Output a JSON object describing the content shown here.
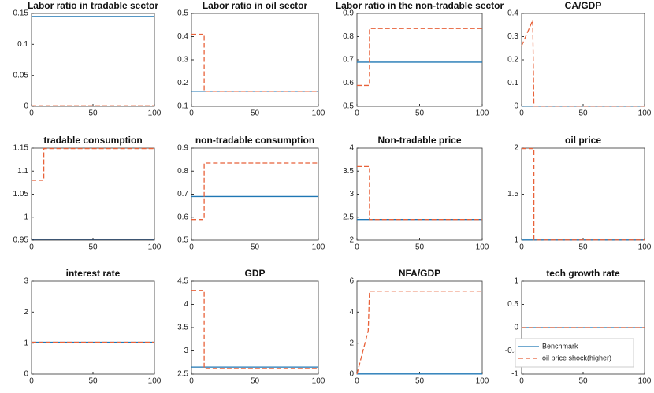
{
  "chart_data": [
    {
      "type": "line",
      "title": "Labor ratio in tradable sector",
      "x": [
        0,
        100
      ],
      "xlim": [
        0,
        100
      ],
      "xticks": [
        0,
        50,
        100
      ],
      "ylim": [
        0,
        0.15
      ],
      "yticks": [
        0,
        0.05,
        0.1,
        0.15
      ],
      "series": [
        {
          "color": "#1f77b4",
          "style": "solid",
          "values": [
            0.145,
            0.145
          ]
        },
        {
          "color": "#e8623a",
          "style": "dashed",
          "values": [
            0.001,
            0.001
          ]
        }
      ]
    },
    {
      "type": "line",
      "title": "Labor ratio in oil sector",
      "x": [
        0,
        10,
        10,
        100
      ],
      "xlim": [
        0,
        100
      ],
      "xticks": [
        0,
        50,
        100
      ],
      "ylim": [
        0.1,
        0.5
      ],
      "yticks": [
        0.1,
        0.2,
        0.3,
        0.4,
        0.5
      ],
      "series": [
        {
          "color": "#1f77b4",
          "style": "solid",
          "values": [
            0.165,
            0.165,
            0.165,
            0.165
          ]
        },
        {
          "color": "#e8623a",
          "style": "dashed",
          "values": [
            0.41,
            0.41,
            0.165,
            0.165
          ]
        }
      ]
    },
    {
      "type": "line",
      "title": "Labor ratio in the non-tradable sector",
      "x": [
        0,
        10,
        10,
        100
      ],
      "xlim": [
        0,
        100
      ],
      "xticks": [
        0,
        50,
        100
      ],
      "ylim": [
        0.5,
        0.9
      ],
      "yticks": [
        0.5,
        0.6,
        0.7,
        0.8,
        0.9
      ],
      "series": [
        {
          "color": "#1f77b4",
          "style": "solid",
          "values": [
            0.69,
            0.69,
            0.69,
            0.69
          ]
        },
        {
          "color": "#e8623a",
          "style": "dashed",
          "values": [
            0.59,
            0.59,
            0.835,
            0.835
          ]
        }
      ]
    },
    {
      "type": "line",
      "title": "CA/GDP",
      "x": [
        0,
        9,
        10,
        100
      ],
      "xlim": [
        0,
        100
      ],
      "xticks": [
        0,
        50,
        100
      ],
      "ylim": [
        0,
        0.4
      ],
      "yticks": [
        0,
        0.1,
        0.2,
        0.3,
        0.4
      ],
      "series": [
        {
          "color": "#1f77b4",
          "style": "solid",
          "values": [
            0.001,
            0.001,
            0.001,
            0.001
          ]
        },
        {
          "color": "#e8623a",
          "style": "dashed",
          "values": [
            0.26,
            0.37,
            0.001,
            0.001
          ]
        }
      ]
    },
    {
      "type": "line",
      "title": "tradable consumption",
      "x": [
        0,
        10,
        10,
        100
      ],
      "xlim": [
        0,
        100
      ],
      "xticks": [
        0,
        50,
        100
      ],
      "ylim": [
        0.95,
        1.15
      ],
      "yticks": [
        0.95,
        1,
        1.05,
        1.1,
        1.15
      ],
      "series": [
        {
          "color": "#1f4f8a",
          "style": "solid",
          "values": [
            0.952,
            0.952,
            0.952,
            0.952
          ]
        },
        {
          "color": "#e8623a",
          "style": "dashed",
          "values": [
            1.08,
            1.08,
            1.149,
            1.149
          ]
        }
      ]
    },
    {
      "type": "line",
      "title": "non-tradable consumption",
      "x": [
        0,
        10,
        10,
        100
      ],
      "xlim": [
        0,
        100
      ],
      "xticks": [
        0,
        50,
        100
      ],
      "ylim": [
        0.5,
        0.9
      ],
      "yticks": [
        0.5,
        0.6,
        0.7,
        0.8,
        0.9
      ],
      "series": [
        {
          "color": "#1f77b4",
          "style": "solid",
          "values": [
            0.69,
            0.69,
            0.69,
            0.69
          ]
        },
        {
          "color": "#e8623a",
          "style": "dashed",
          "values": [
            0.59,
            0.59,
            0.835,
            0.835
          ]
        }
      ]
    },
    {
      "type": "line",
      "title": "Non-tradable price",
      "x": [
        0,
        10,
        10,
        100
      ],
      "xlim": [
        0,
        100
      ],
      "xticks": [
        0,
        50,
        100
      ],
      "ylim": [
        2,
        4
      ],
      "yticks": [
        2,
        2.5,
        3,
        3.5,
        4
      ],
      "series": [
        {
          "color": "#1f77b4",
          "style": "solid",
          "values": [
            2.45,
            2.45,
            2.45,
            2.45
          ]
        },
        {
          "color": "#e8623a",
          "style": "dashed",
          "values": [
            3.6,
            3.6,
            2.45,
            2.45
          ]
        }
      ]
    },
    {
      "type": "line",
      "title": "oil price",
      "x": [
        0,
        10,
        10,
        100
      ],
      "xlim": [
        0,
        100
      ],
      "xticks": [
        0,
        50,
        100
      ],
      "ylim": [
        1,
        2
      ],
      "yticks": [
        1,
        1.5,
        2
      ],
      "series": [
        {
          "color": "#1f77b4",
          "style": "solid",
          "values": [
            1.002,
            1.002,
            1.002,
            1.002
          ]
        },
        {
          "color": "#e8623a",
          "style": "dashed",
          "values": [
            1.995,
            1.995,
            1.002,
            1.002
          ]
        }
      ]
    },
    {
      "type": "line",
      "title": "interest rate",
      "x": [
        0,
        100
      ],
      "xlim": [
        0,
        100
      ],
      "xticks": [
        0,
        50,
        100
      ],
      "ylim": [
        0,
        3
      ],
      "yticks": [
        0,
        1,
        2,
        3
      ],
      "series": [
        {
          "color": "#1f77b4",
          "style": "solid",
          "values": [
            1.03,
            1.03
          ]
        },
        {
          "color": "#e8623a",
          "style": "dashed",
          "values": [
            1.03,
            1.03
          ]
        }
      ]
    },
    {
      "type": "line",
      "title": "GDP",
      "x": [
        0,
        10,
        10,
        100
      ],
      "xlim": [
        0,
        100
      ],
      "xticks": [
        0,
        50,
        100
      ],
      "ylim": [
        2.5,
        4.5
      ],
      "yticks": [
        2.5,
        3,
        3.5,
        4,
        4.5
      ],
      "series": [
        {
          "color": "#1f77b4",
          "style": "solid",
          "values": [
            2.65,
            2.65,
            2.65,
            2.65
          ]
        },
        {
          "color": "#e8623a",
          "style": "dashed",
          "values": [
            4.3,
            4.3,
            2.62,
            2.62
          ]
        }
      ]
    },
    {
      "type": "line",
      "title": "NFA/GDP",
      "x": [
        0,
        9,
        10,
        100
      ],
      "xlim": [
        0,
        100
      ],
      "xticks": [
        0,
        50,
        100
      ],
      "ylim": [
        0,
        6
      ],
      "yticks": [
        0,
        2,
        4,
        6
      ],
      "series": [
        {
          "color": "#1f77b4",
          "style": "solid",
          "values": [
            0.01,
            0.01,
            0.01,
            0.01
          ]
        },
        {
          "color": "#e8623a",
          "style": "dashed",
          "values": [
            0,
            2.8,
            5.35,
            5.35
          ]
        }
      ]
    },
    {
      "type": "line",
      "title": "tech growth rate",
      "x": [
        0,
        100
      ],
      "xlim": [
        0,
        100
      ],
      "xticks": [
        0,
        50,
        100
      ],
      "ylim": [
        -1,
        1
      ],
      "yticks": [
        -1,
        -0.5,
        0,
        0.5,
        1
      ],
      "legend": "lower left",
      "series": [
        {
          "name": "Benchmark",
          "color": "#1f77b4",
          "style": "solid",
          "values": [
            0,
            0
          ]
        },
        {
          "name": "oil price shock(higher)",
          "color": "#e8623a",
          "style": "dashed",
          "values": [
            0,
            0
          ]
        }
      ]
    }
  ]
}
